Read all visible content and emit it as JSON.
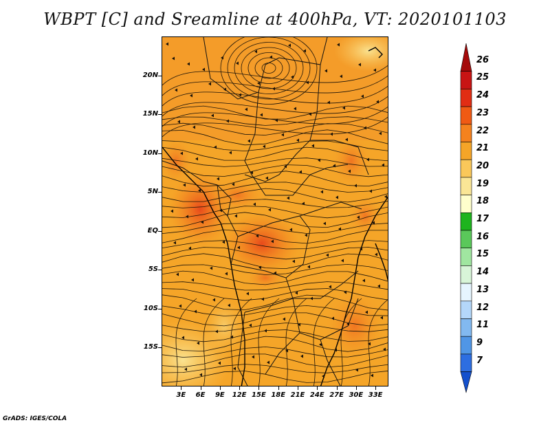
{
  "title": "WBPT [C] and Sreamline at 400hPa, VT: 2020101103",
  "footer": "GrADS: IGES/COLA",
  "y_axis": {
    "labels": [
      "20N",
      "15N",
      "10N",
      "5N",
      "EQ",
      "5S",
      "10S",
      "15S"
    ],
    "values": [
      20,
      15,
      10,
      5,
      0,
      -5,
      -10,
      -15
    ],
    "range": [
      -20,
      25
    ]
  },
  "x_axis": {
    "labels": [
      "3E",
      "6E",
      "9E",
      "12E",
      "15E",
      "18E",
      "21E",
      "24E",
      "27E",
      "30E",
      "33E"
    ],
    "values": [
      3,
      6,
      9,
      12,
      15,
      18,
      21,
      24,
      27,
      30,
      33
    ],
    "range": [
      0,
      35
    ]
  },
  "colorbar": {
    "labels": [
      "26",
      "25",
      "24",
      "23",
      "22",
      "21",
      "20",
      "19",
      "18",
      "17",
      "16",
      "15",
      "14",
      "13",
      "12",
      "11",
      "9",
      "7"
    ],
    "colors": [
      "#a50a0a",
      "#c81414",
      "#e12d14",
      "#f05a14",
      "#f5821e",
      "#f5a528",
      "#fac85a",
      "#fae696",
      "#ffffcc",
      "#1eb41e",
      "#5ac85a",
      "#a0e6a0",
      "#d8f5d8",
      "#e6f5ff",
      "#b4d7fa",
      "#82b9f0",
      "#5096e6",
      "#2d6ee1",
      "#1450cd"
    ]
  },
  "legend_tokens": {
    "streamline": "streamline",
    "boundary": "country-boundary"
  }
}
